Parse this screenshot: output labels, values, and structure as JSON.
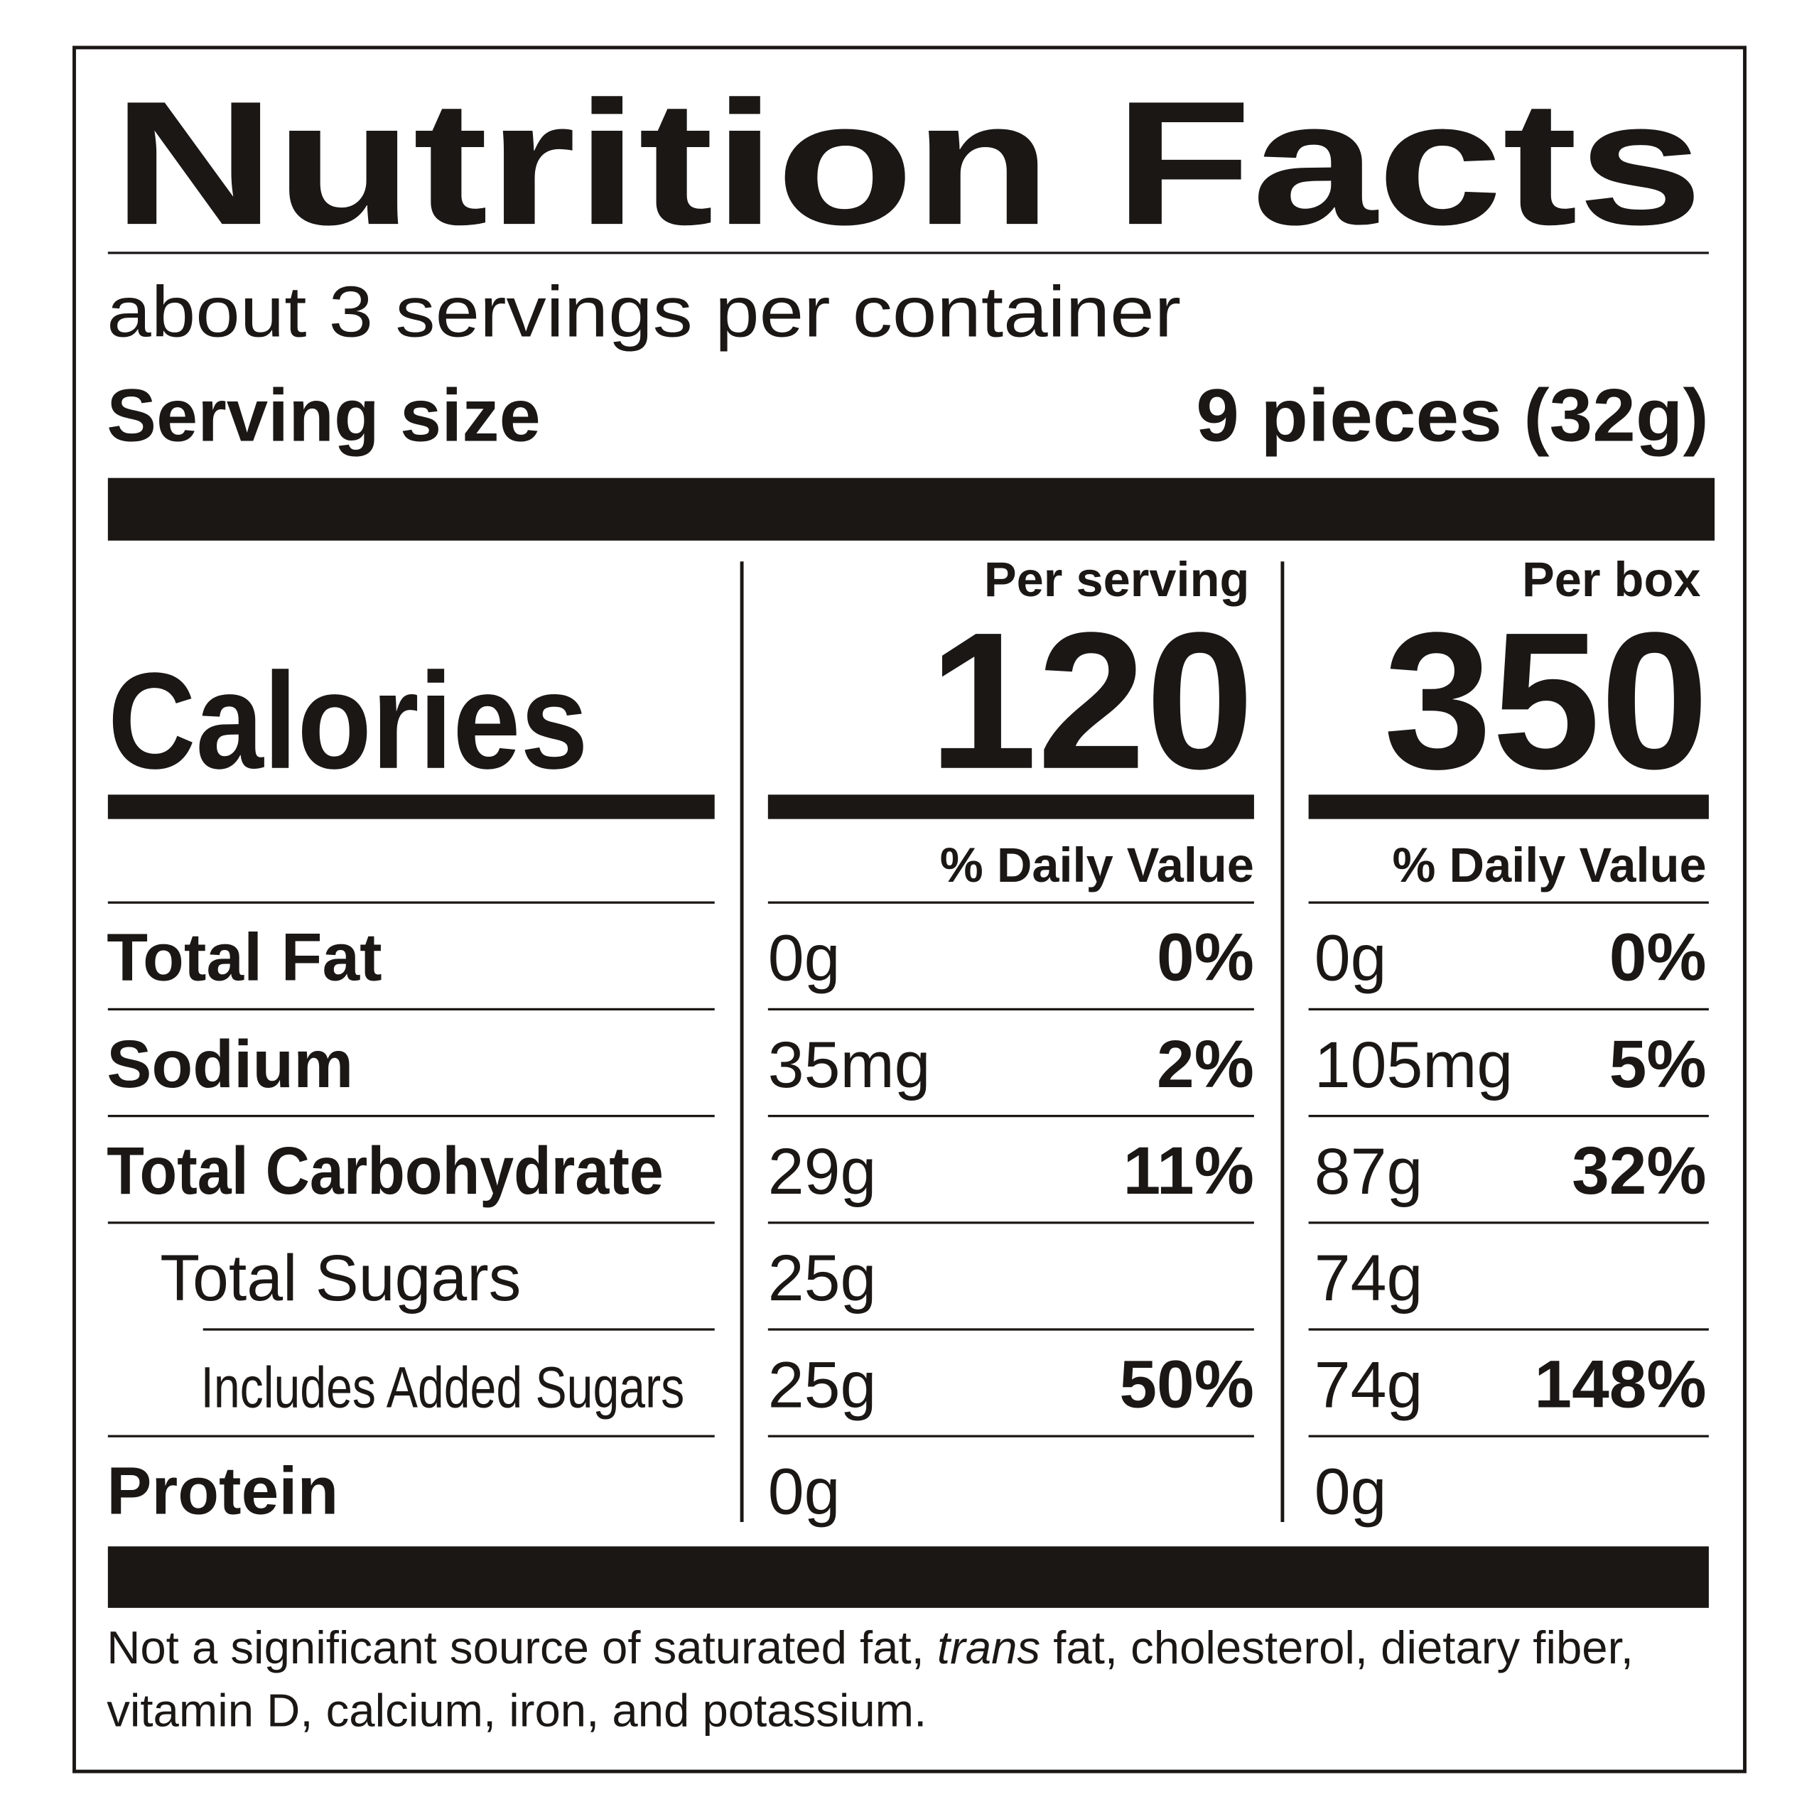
{
  "title": "Nutrition Facts",
  "servings_per_container": "about 3 servings per container",
  "serving_size": {
    "label": "Serving size",
    "value": "9 pieces (32g)"
  },
  "calories": {
    "label": "Calories",
    "columns": [
      {
        "header": "Per serving",
        "value": "120",
        "dv_header": "% Daily Value"
      },
      {
        "header": "Per box",
        "value": "350",
        "dv_header": "% Daily Value"
      }
    ]
  },
  "nutrients": [
    {
      "name": "Total Fat",
      "columns": [
        {
          "amount": "0g",
          "dv": "0%"
        },
        {
          "amount": "0g",
          "dv": "0%"
        }
      ]
    },
    {
      "name": "Sodium",
      "columns": [
        {
          "amount": "35mg",
          "dv": "2%"
        },
        {
          "amount": "105mg",
          "dv": "5%"
        }
      ]
    },
    {
      "name": "Total Carbohydrate",
      "columns": [
        {
          "amount": "29g",
          "dv": "11%"
        },
        {
          "amount": "87g",
          "dv": "32%"
        }
      ]
    },
    {
      "name": "Total Sugars",
      "columns": [
        {
          "amount": "25g"
        },
        {
          "amount": "74g"
        }
      ]
    },
    {
      "name": "Includes Added Sugars",
      "columns": [
        {
          "amount": "25g",
          "dv": "50%"
        },
        {
          "amount": "74g",
          "dv": "148%"
        }
      ]
    },
    {
      "name": "Protein",
      "columns": [
        {
          "amount": "0g"
        },
        {
          "amount": "0g"
        }
      ]
    }
  ],
  "footnote": {
    "line1": {
      "before": "Not a significant source of saturated fat, ",
      "italic": "trans",
      "after": " fat, cholesterol, dietary fiber,"
    },
    "line2": "vitamin D, calcium, iron, and potassium."
  }
}
